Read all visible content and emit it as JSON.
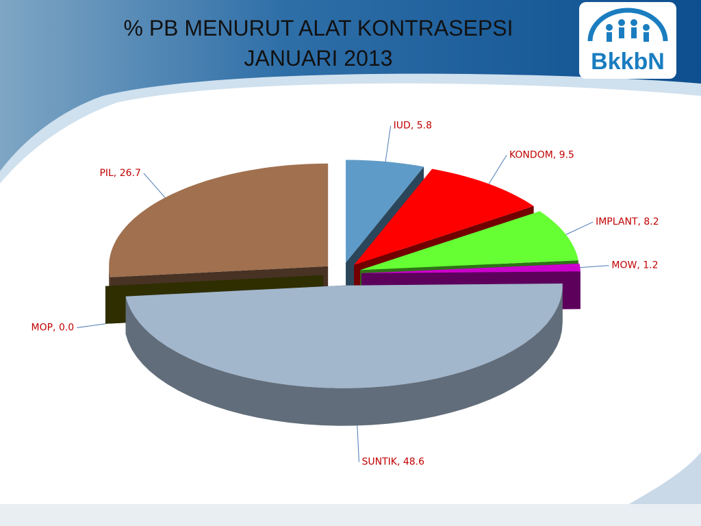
{
  "logo_text": "BkkbN",
  "chart_data": {
    "type": "pie3d",
    "title": "% PB MENURUT ALAT KONTRASEPSI",
    "subtitle": "JANUARI 2013",
    "categories": [
      "IUD",
      "KONDOM",
      "IMPLANT",
      "MOW",
      "SUNTIK",
      "MOP",
      "PIL"
    ],
    "values": [
      5.8,
      9.5,
      8.2,
      1.2,
      48.6,
      0,
      26.7
    ],
    "value_labels": [
      "IUD, 5.8",
      "KONDOM, 9.5",
      "IMPLANT, 8.2",
      "MOW, 1.2",
      "SUNTIK, 48.6",
      "MOP, 0.0",
      "PIL, 26.7"
    ],
    "colors": [
      "#5f9bc8",
      "#ff0000",
      "#66ff33",
      "#cc00cc",
      "#a2b6cc",
      "#666600",
      "#a0704f"
    ]
  }
}
